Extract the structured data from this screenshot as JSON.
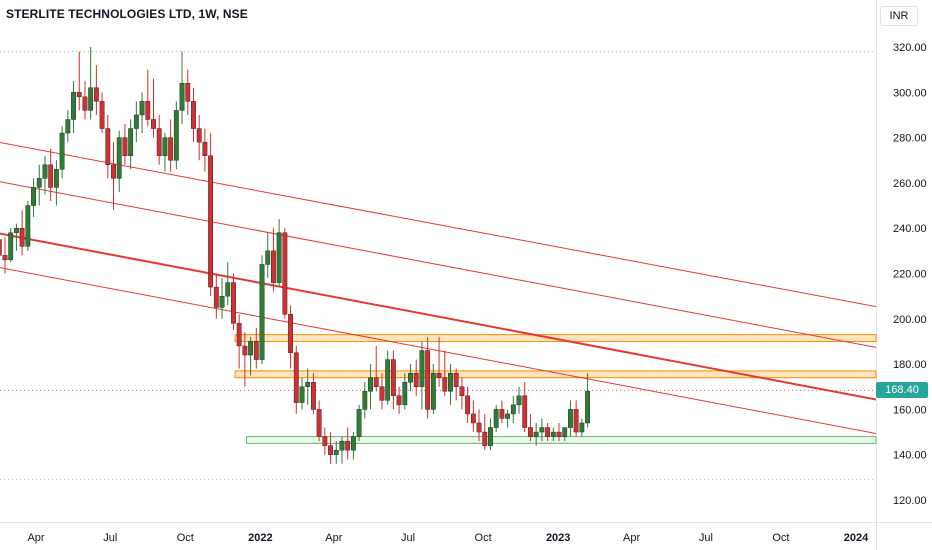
{
  "header": {
    "symbol_title": "STERLITE TECHNOLOGIES LTD, 1W, NSE",
    "currency": "INR"
  },
  "colors": {
    "up": "#26a69a",
    "up_candle": "#2e7d32",
    "down": "#d32f2f",
    "channel": "#e53935",
    "resistance_fill": "#ffe0b2",
    "resistance_border": "#fb8c00",
    "support_fill": "#e8f5e9",
    "support_border": "#66bb6a",
    "grid_dot": "#b2b5be"
  },
  "chart_data": {
    "type": "candlestick",
    "timeframe": "1W",
    "last_price": 168.4,
    "last_price_label": "168.40",
    "y_ticks": [
      120,
      140,
      160,
      180,
      200,
      220,
      240,
      260,
      280,
      300,
      320
    ],
    "y_tick_labels": [
      "120.00",
      "140.00",
      "160.00",
      "180.00",
      "200.00",
      "220.00",
      "240.00",
      "260.00",
      "280.00",
      "300.00",
      "320.00"
    ],
    "ylim": [
      112,
      328
    ],
    "x_ticks": [
      "Apr",
      "Jul",
      "Oct",
      "2022",
      "Apr",
      "Jul",
      "Oct",
      "2023",
      "Apr",
      "Jul",
      "Oct",
      "2024"
    ],
    "x_tick_bold": [
      false,
      false,
      false,
      true,
      false,
      false,
      false,
      true,
      false,
      false,
      false,
      true
    ],
    "x_tick_dates": [
      "2021-04-01",
      "2021-07-01",
      "2021-10-01",
      "2022-01-01",
      "2022-04-01",
      "2022-07-01",
      "2022-10-01",
      "2023-01-01",
      "2023-04-01",
      "2023-07-01",
      "2023-10-01",
      "2024-01-01"
    ],
    "dotted_levels": [
      318,
      129
    ],
    "zones": [
      {
        "kind": "resistance",
        "from": "2021-12-01",
        "to": "2024-01-31",
        "low": 190,
        "high": 193
      },
      {
        "kind": "resistance",
        "from": "2021-12-01",
        "to": "2024-01-31",
        "low": 174,
        "high": 177
      },
      {
        "kind": "support",
        "from": "2021-12-15",
        "to": "2024-01-31",
        "low": 145,
        "high": 148
      }
    ],
    "channel_lines": [
      {
        "from": [
          "2021-01-15",
          280
        ],
        "to": [
          "2024-01-31",
          205
        ],
        "weight": "thin"
      },
      {
        "from": [
          "2021-01-10",
          263
        ],
        "to": [
          "2024-01-31",
          187
        ],
        "weight": "thin"
      },
      {
        "from": [
          "2020-12-28",
          241
        ],
        "to": [
          "2024-01-31",
          164
        ],
        "weight": "bold"
      },
      {
        "from": [
          "2020-12-28",
          226
        ],
        "to": [
          "2024-01-31",
          149
        ],
        "weight": "thin"
      }
    ],
    "candles_weekly_from": "2020-12-28",
    "candles": [
      [
        215,
        223,
        208,
        218
      ],
      [
        218,
        225,
        212,
        210
      ],
      [
        210,
        218,
        195,
        198
      ],
      [
        198,
        205,
        190,
        193
      ],
      [
        193,
        215,
        192,
        212
      ],
      [
        212,
        230,
        208,
        225
      ],
      [
        225,
        240,
        220,
        235
      ],
      [
        235,
        238,
        222,
        228
      ],
      [
        228,
        236,
        220,
        226
      ],
      [
        226,
        240,
        225,
        238
      ],
      [
        238,
        242,
        230,
        240
      ],
      [
        240,
        248,
        228,
        232
      ],
      [
        232,
        252,
        230,
        250
      ],
      [
        250,
        262,
        245,
        258
      ],
      [
        258,
        268,
        250,
        262
      ],
      [
        262,
        272,
        255,
        268
      ],
      [
        268,
        275,
        252,
        258
      ],
      [
        258,
        270,
        250,
        266
      ],
      [
        266,
        285,
        262,
        282
      ],
      [
        282,
        292,
        278,
        288
      ],
      [
        288,
        305,
        282,
        300
      ],
      [
        300,
        318,
        292,
        298
      ],
      [
        298,
        305,
        288,
        292
      ],
      [
        292,
        320,
        288,
        302
      ],
      [
        302,
        312,
        290,
        296
      ],
      [
        296,
        300,
        282,
        284
      ],
      [
        284,
        290,
        262,
        268
      ],
      [
        268,
        278,
        248,
        262
      ],
      [
        262,
        283,
        256,
        280
      ],
      [
        280,
        286,
        268,
        272
      ],
      [
        272,
        288,
        266,
        284
      ],
      [
        284,
        296,
        278,
        290
      ],
      [
        290,
        300,
        282,
        296
      ],
      [
        296,
        310,
        285,
        288
      ],
      [
        288,
        306,
        280,
        284
      ],
      [
        284,
        290,
        268,
        272
      ],
      [
        272,
        282,
        265,
        280
      ],
      [
        280,
        288,
        265,
        270
      ],
      [
        270,
        296,
        266,
        292
      ],
      [
        292,
        318,
        286,
        304
      ],
      [
        304,
        310,
        290,
        296
      ],
      [
        296,
        302,
        278,
        284
      ],
      [
        284,
        290,
        270,
        278
      ],
      [
        278,
        284,
        265,
        272
      ],
      [
        272,
        282,
        210,
        214
      ],
      [
        214,
        220,
        200,
        205
      ],
      [
        205,
        218,
        200,
        210
      ],
      [
        210,
        225,
        206,
        216
      ],
      [
        216,
        220,
        195,
        198
      ],
      [
        198,
        202,
        178,
        188
      ],
      [
        188,
        194,
        170,
        184
      ],
      [
        184,
        192,
        175,
        190
      ],
      [
        190,
        196,
        178,
        182
      ],
      [
        182,
        228,
        180,
        224
      ],
      [
        224,
        238,
        218,
        230
      ],
      [
        230,
        240,
        212,
        216
      ],
      [
        216,
        244,
        214,
        238
      ],
      [
        238,
        240,
        200,
        202
      ],
      [
        202,
        206,
        178,
        185
      ],
      [
        185,
        188,
        158,
        163
      ],
      [
        163,
        174,
        160,
        170
      ],
      [
        170,
        178,
        162,
        172
      ],
      [
        172,
        176,
        158,
        160
      ],
      [
        160,
        164,
        146,
        148
      ],
      [
        148,
        152,
        140,
        144
      ],
      [
        144,
        150,
        136,
        140
      ],
      [
        140,
        146,
        136,
        142
      ],
      [
        142,
        148,
        136,
        146
      ],
      [
        146,
        152,
        138,
        142
      ],
      [
        142,
        150,
        138,
        148
      ],
      [
        148,
        162,
        146,
        160
      ],
      [
        160,
        172,
        156,
        168
      ],
      [
        168,
        180,
        160,
        174
      ],
      [
        174,
        188,
        168,
        170
      ],
      [
        170,
        176,
        160,
        164
      ],
      [
        164,
        186,
        162,
        182
      ],
      [
        182,
        186,
        160,
        166
      ],
      [
        166,
        170,
        158,
        162
      ],
      [
        162,
        176,
        160,
        172
      ],
      [
        172,
        180,
        168,
        176
      ],
      [
        176,
        182,
        166,
        170
      ],
      [
        170,
        190,
        160,
        186
      ],
      [
        186,
        192,
        156,
        160
      ],
      [
        160,
        180,
        158,
        176
      ],
      [
        176,
        192,
        170,
        174
      ],
      [
        174,
        186,
        166,
        168
      ],
      [
        168,
        180,
        162,
        176
      ],
      [
        176,
        178,
        164,
        170
      ],
      [
        170,
        174,
        160,
        166
      ],
      [
        166,
        170,
        154,
        158
      ],
      [
        158,
        164,
        150,
        154
      ],
      [
        154,
        160,
        146,
        150
      ],
      [
        150,
        158,
        142,
        144
      ],
      [
        144,
        156,
        142,
        152
      ],
      [
        152,
        162,
        150,
        160
      ],
      [
        160,
        164,
        154,
        156
      ],
      [
        156,
        160,
        152,
        158
      ],
      [
        158,
        166,
        154,
        162
      ],
      [
        162,
        170,
        158,
        166
      ],
      [
        166,
        172,
        150,
        152
      ],
      [
        152,
        158,
        146,
        148
      ],
      [
        148,
        154,
        144,
        150
      ],
      [
        150,
        156,
        146,
        152
      ],
      [
        152,
        154,
        146,
        148
      ],
      [
        148,
        152,
        146,
        150
      ],
      [
        150,
        154,
        146,
        148
      ],
      [
        148,
        152,
        146,
        152
      ],
      [
        152,
        164,
        148,
        160
      ],
      [
        160,
        164,
        148,
        150
      ],
      [
        150,
        156,
        148,
        154
      ],
      [
        154,
        176,
        152,
        168
      ]
    ]
  }
}
